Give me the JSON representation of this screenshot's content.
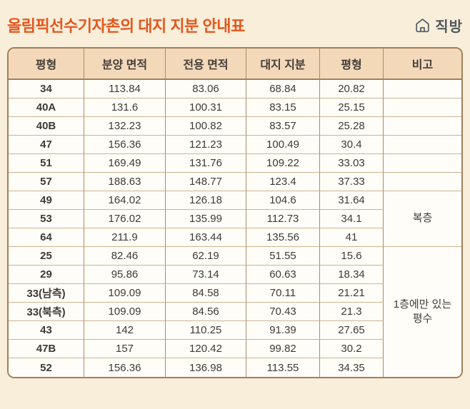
{
  "page": {
    "title": "올림픽선수기자촌의 대지 지분 안내표",
    "logo": {
      "text": "직방",
      "icon": "house-icon"
    }
  },
  "colors": {
    "background": "#f8eeda",
    "title_accent": "#e4571d",
    "table_border_outer": "#a1805c",
    "table_border_column": "#ab8b68",
    "table_border_row": "#cdb293",
    "header_bg": "#f3d9ba",
    "cell_bg": "#fffdf8",
    "text": "#3e3a36",
    "logo_gray": "#4e585e"
  },
  "table": {
    "headers": [
      "평형",
      "분양 면적",
      "전용 면적",
      "대지 지분",
      "평형",
      "비고"
    ],
    "rows": [
      [
        "34",
        "113.84",
        "83.06",
        "68.84",
        "20.82"
      ],
      [
        "40A",
        "131.6",
        "100.31",
        "83.15",
        "25.15"
      ],
      [
        "40B",
        "132.23",
        "100.82",
        "83.57",
        "25.28"
      ],
      [
        "47",
        "156.36",
        "121.23",
        "100.49",
        "30.4"
      ],
      [
        "51",
        "169.49",
        "131.76",
        "109.22",
        "33.03"
      ],
      [
        "57",
        "188.63",
        "148.77",
        "123.4",
        "37.33"
      ],
      [
        "49",
        "164.02",
        "126.18",
        "104.6",
        "31.64"
      ],
      [
        "53",
        "176.02",
        "135.99",
        "112.73",
        "34.1"
      ],
      [
        "64",
        "211.9",
        "163.44",
        "135.56",
        "41"
      ],
      [
        "25",
        "82.46",
        "62.19",
        "51.55",
        "15.6"
      ],
      [
        "29",
        "95.86",
        "73.14",
        "60.63",
        "18.34"
      ],
      [
        "33(남측)",
        "109.09",
        "84.58",
        "70.11",
        "21.21"
      ],
      [
        "33(북측)",
        "109.09",
        "84.56",
        "70.43",
        "21.3"
      ],
      [
        "43",
        "142",
        "110.25",
        "91.39",
        "27.65"
      ],
      [
        "47B",
        "157",
        "120.42",
        "99.82",
        "30.2"
      ],
      [
        "52",
        "156.36",
        "136.98",
        "113.55",
        "34.35"
      ]
    ],
    "remark_cells": [
      {
        "row": 0,
        "span": 1,
        "label": ""
      },
      {
        "row": 1,
        "span": 1,
        "label": ""
      },
      {
        "row": 2,
        "span": 1,
        "label": ""
      },
      {
        "row": 3,
        "span": 1,
        "label": ""
      },
      {
        "row": 4,
        "span": 1,
        "label": ""
      },
      {
        "row": 5,
        "span": 1,
        "label": ""
      },
      {
        "row": 6,
        "span": 3,
        "label": "복층"
      },
      {
        "row": 9,
        "span": 7,
        "label": "1층에만 있는 평수"
      }
    ]
  },
  "chart_data": {
    "type": "table",
    "title": "올림픽선수기자촌의 대지 지분 안내표",
    "columns": [
      "평형",
      "분양 면적",
      "전용 면적",
      "대지 지분",
      "평형",
      "비고"
    ],
    "rows": [
      [
        "34",
        "113.84",
        "83.06",
        "68.84",
        "20.82",
        ""
      ],
      [
        "40A",
        "131.6",
        "100.31",
        "83.15",
        "25.15",
        ""
      ],
      [
        "40B",
        "132.23",
        "100.82",
        "83.57",
        "25.28",
        ""
      ],
      [
        "47",
        "156.36",
        "121.23",
        "100.49",
        "30.4",
        ""
      ],
      [
        "51",
        "169.49",
        "131.76",
        "109.22",
        "33.03",
        ""
      ],
      [
        "57",
        "188.63",
        "148.77",
        "123.4",
        "37.33",
        ""
      ],
      [
        "49",
        "164.02",
        "126.18",
        "104.6",
        "31.64",
        "복층"
      ],
      [
        "53",
        "176.02",
        "135.99",
        "112.73",
        "34.1",
        "복층"
      ],
      [
        "64",
        "211.9",
        "163.44",
        "135.56",
        "41",
        "복층"
      ],
      [
        "25",
        "82.46",
        "62.19",
        "51.55",
        "15.6",
        "1층에만 있는 평수"
      ],
      [
        "29",
        "95.86",
        "73.14",
        "60.63",
        "18.34",
        "1층에만 있는 평수"
      ],
      [
        "33(남측)",
        "109.09",
        "84.58",
        "70.11",
        "21.21",
        "1층에만 있는 평수"
      ],
      [
        "33(북측)",
        "109.09",
        "84.56",
        "70.43",
        "21.3",
        "1층에만 있는 평수"
      ],
      [
        "43",
        "142",
        "110.25",
        "91.39",
        "27.65",
        "1층에만 있는 평수"
      ],
      [
        "47B",
        "157",
        "120.42",
        "99.82",
        "30.2",
        "1층에만 있는 평수"
      ],
      [
        "52",
        "156.36",
        "136.98",
        "113.55",
        "34.35",
        "1층에만 있는 평수"
      ]
    ]
  }
}
